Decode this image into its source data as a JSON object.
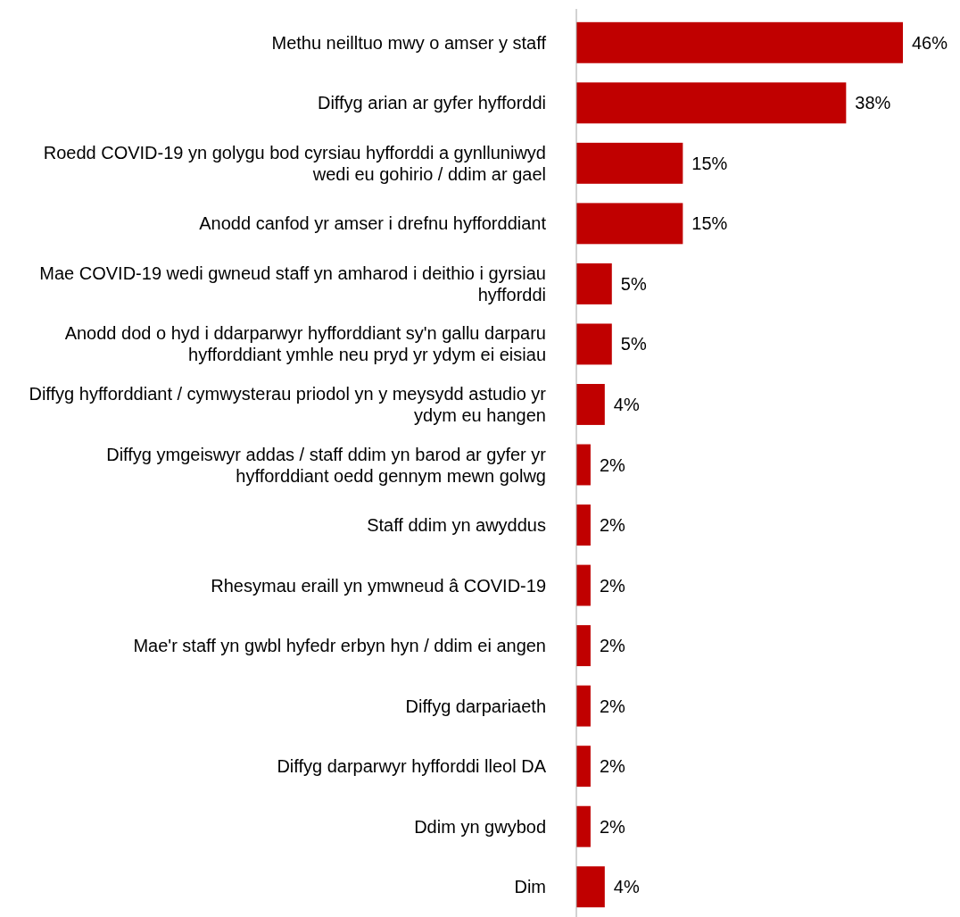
{
  "chart_data": {
    "type": "bar",
    "orientation": "horizontal",
    "categories": [
      "Methu neilltuo mwy o amser y staff",
      "Diffyg arian ar gyfer hyfforddi",
      "Roedd COVID-19 yn golygu bod cyrsiau hyfforddi a gynlluniwyd wedi eu gohirio / ddim ar gael",
      "Anodd canfod yr amser i drefnu hyfforddiant",
      "Mae COVID-19 wedi gwneud staff yn amharod i deithio i gyrsiau hyfforddi",
      "Anodd dod o hyd i ddarparwyr hyfforddiant sy'n gallu darparu hyfforddiant ymhle neu pryd yr ydym ei eisiau",
      "Diffyg hyfforddiant / cymwysterau priodol yn y meysydd astudio yr ydym eu hangen",
      "Diffyg ymgeiswyr addas / staff ddim yn barod ar gyfer yr hyfforddiant oedd gennym mewn golwg",
      "Staff ddim yn awyddus",
      "Rhesymau eraill yn ymwneud â COVID-19",
      "Mae'r staff yn gwbl hyfedr erbyn hyn / ddim ei angen",
      "Diffyg darpariaeth",
      "Diffyg darparwyr hyfforddi lleol DA",
      "Ddim yn gwybod",
      "Dim"
    ],
    "values": [
      46,
      38,
      15,
      15,
      5,
      5,
      4,
      2,
      2,
      2,
      2,
      2,
      2,
      2,
      4
    ],
    "value_labels": [
      "46%",
      "38%",
      "15%",
      "15%",
      "5%",
      "5%",
      "4%",
      "2%",
      "2%",
      "2%",
      "2%",
      "2%",
      "2%",
      "2%",
      "4%"
    ],
    "color": "#c00000",
    "tick_labels": "y"
  }
}
